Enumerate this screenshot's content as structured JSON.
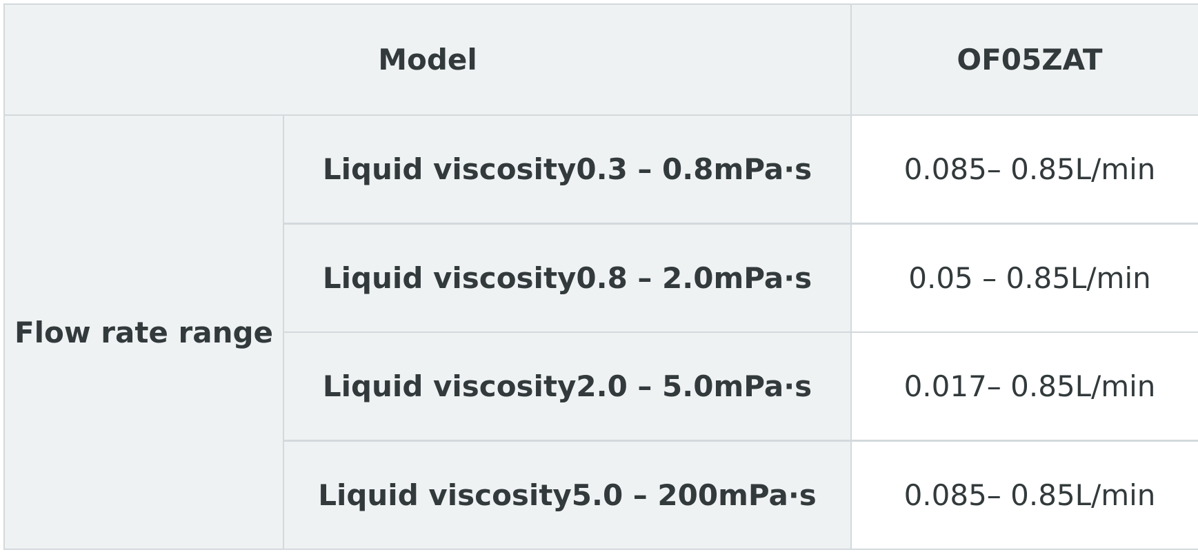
{
  "table": {
    "header": [
      "Model",
      "OF05ZAT"
    ],
    "group_label": "Flow rate range",
    "rows": [
      [
        "Liquid viscosity0.3 – 0.8mPa·s",
        "0.085– 0.85L/min"
      ],
      [
        "Liquid viscosity0.8 – 2.0mPa·s",
        "0.05 – 0.85L/min"
      ],
      [
        "Liquid viscosity2.0 – 5.0mPa·s",
        "0.017– 0.85L/min"
      ],
      [
        "Liquid viscosity5.0 – 200mPa·s",
        "0.085– 0.85L/min"
      ]
    ]
  }
}
